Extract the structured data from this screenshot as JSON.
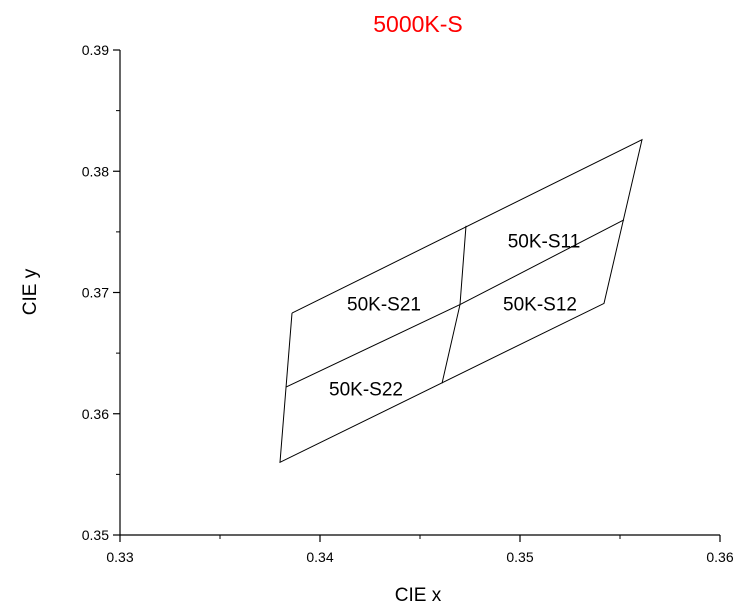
{
  "chart_data": {
    "type": "line",
    "title": "5000K-S",
    "title_color": "#ff0000",
    "xlabel": "CIE x",
    "ylabel": "CIE y",
    "xlim": [
      0.33,
      0.36
    ],
    "ylim": [
      0.35,
      0.39
    ],
    "xticks": [
      "0.33",
      "0.34",
      "0.35",
      "0.36"
    ],
    "yticks": [
      "0.35",
      "0.36",
      "0.37",
      "0.38",
      "0.39"
    ],
    "grid": false,
    "line_color": "#000000",
    "boundaries": [
      {
        "name": "outer",
        "x": [
          0.3386,
          0.3561,
          0.3542,
          0.338,
          0.3386
        ],
        "y": [
          0.3683,
          0.3826,
          0.3691,
          0.356,
          0.3683
        ]
      },
      {
        "name": "horizontal-divider",
        "x": [
          0.3383,
          0.347,
          0.3552
        ],
        "y": [
          0.3622,
          0.369,
          0.376
        ]
      },
      {
        "name": "vertical-divider",
        "x": [
          0.3473,
          0.347,
          0.3461
        ],
        "y": [
          0.3755,
          0.369,
          0.3625
        ]
      }
    ],
    "regions": [
      {
        "label": "50K-S11",
        "x": 0.3512,
        "y": 0.3737
      },
      {
        "label": "50K-S12",
        "x": 0.351,
        "y": 0.3685
      },
      {
        "label": "50K-S21",
        "x": 0.3432,
        "y": 0.3685
      },
      {
        "label": "50K-S22",
        "x": 0.3423,
        "y": 0.3615
      }
    ]
  }
}
